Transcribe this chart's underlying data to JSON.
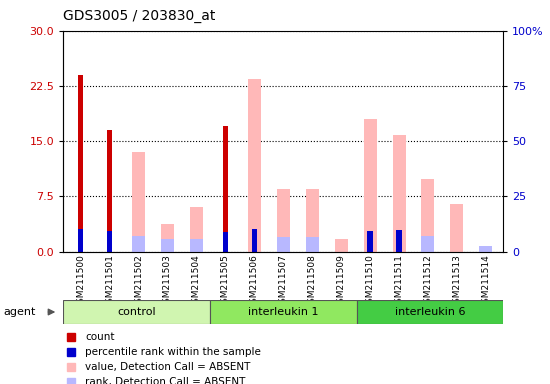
{
  "title": "GDS3005 / 203830_at",
  "samples": [
    "GSM211500",
    "GSM211501",
    "GSM211502",
    "GSM211503",
    "GSM211504",
    "GSM211505",
    "GSM211506",
    "GSM211507",
    "GSM211508",
    "GSM211509",
    "GSM211510",
    "GSM211511",
    "GSM211512",
    "GSM211513",
    "GSM211514"
  ],
  "groups": [
    {
      "name": "control",
      "indices": [
        0,
        1,
        2,
        3,
        4
      ],
      "color": "#d0f5b0"
    },
    {
      "name": "interleukin 1",
      "indices": [
        5,
        6,
        7,
        8,
        9
      ],
      "color": "#90e860"
    },
    {
      "name": "interleukin 6",
      "indices": [
        10,
        11,
        12,
        13,
        14
      ],
      "color": "#44cc44"
    }
  ],
  "count_values": [
    24.0,
    16.5,
    0,
    0,
    0,
    17.0,
    0,
    0,
    0,
    0,
    0,
    0,
    0,
    0,
    0
  ],
  "percentile_values": [
    10.0,
    9.2,
    0,
    0,
    0,
    9.0,
    10.2,
    0,
    0,
    0,
    9.5,
    9.8,
    0,
    0,
    0
  ],
  "absent_value_values": [
    0,
    0,
    13.5,
    3.8,
    6.0,
    0,
    23.5,
    8.5,
    8.5,
    1.7,
    18.0,
    15.8,
    9.8,
    6.5,
    0
  ],
  "absent_rank_values": [
    0,
    0,
    7.2,
    5.5,
    5.5,
    0,
    0,
    6.5,
    6.5,
    0,
    0,
    0,
    7.0,
    0,
    2.5
  ],
  "ylim_left": [
    0,
    30
  ],
  "yticks_left": [
    0,
    7.5,
    15,
    22.5,
    30
  ],
  "yticks_right": [
    0,
    25,
    50,
    75,
    100
  ],
  "count_color": "#cc0000",
  "percentile_color": "#0000cc",
  "absent_value_color": "#ffb8b8",
  "absent_rank_color": "#b8b8ff",
  "group_colors": [
    "#d0f5b0",
    "#90e860",
    "#44cc44"
  ],
  "legend": [
    {
      "label": "count",
      "color": "#cc0000"
    },
    {
      "label": "percentile rank within the sample",
      "color": "#0000cc"
    },
    {
      "label": "value, Detection Call = ABSENT",
      "color": "#ffb8b8"
    },
    {
      "label": "rank, Detection Call = ABSENT",
      "color": "#b8b8ff"
    }
  ]
}
